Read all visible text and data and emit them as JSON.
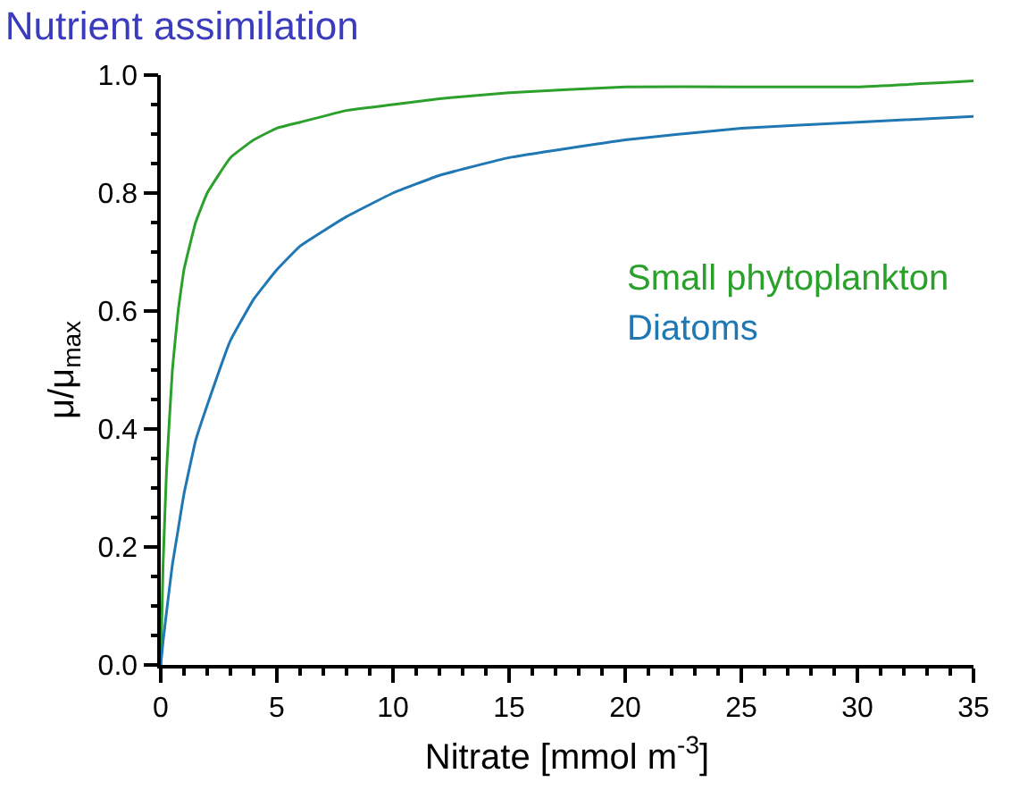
{
  "chart_data": {
    "type": "line",
    "title": "Nutrient assimilation",
    "xlabel": "Nitrate [mmol m$^{-3}$]",
    "ylabel": "μ/μ$_{max}$",
    "x": [
      0,
      0.1,
      0.25,
      0.5,
      0.75,
      1,
      1.5,
      2,
      3,
      4,
      5,
      6,
      8,
      10,
      12,
      15,
      20,
      25,
      30,
      35
    ],
    "series": [
      {
        "name": "Small phytoplankton",
        "color": "#2ca02c",
        "values": [
          0,
          0.17,
          0.33,
          0.5,
          0.6,
          0.67,
          0.75,
          0.8,
          0.86,
          0.89,
          0.91,
          0.92,
          0.94,
          0.95,
          0.96,
          0.97,
          0.98,
          0.98,
          0.98,
          0.99
        ]
      },
      {
        "name": "Diatoms",
        "color": "#1f77b4",
        "values": [
          0,
          0.04,
          0.09,
          0.17,
          0.23,
          0.29,
          0.38,
          0.44,
          0.55,
          0.62,
          0.67,
          0.71,
          0.76,
          0.8,
          0.83,
          0.86,
          0.89,
          0.91,
          0.92,
          0.93
        ]
      }
    ],
    "xlim": [
      0,
      35
    ],
    "xticks": [
      0,
      5,
      10,
      15,
      20,
      25,
      30,
      35
    ],
    "ylim": [
      0,
      1
    ],
    "yticks": [
      {
        "value": 0,
        "label": "0.0"
      },
      {
        "value": 0.2,
        "label": "0.2"
      },
      {
        "value": 0.4,
        "label": "0.4"
      },
      {
        "value": 0.6,
        "label": "0.6"
      },
      {
        "value": 0.8,
        "label": "0.8"
      },
      {
        "value": 1,
        "label": "1.0"
      }
    ],
    "legend": false,
    "marker": "none",
    "line_style": "solid"
  }
}
